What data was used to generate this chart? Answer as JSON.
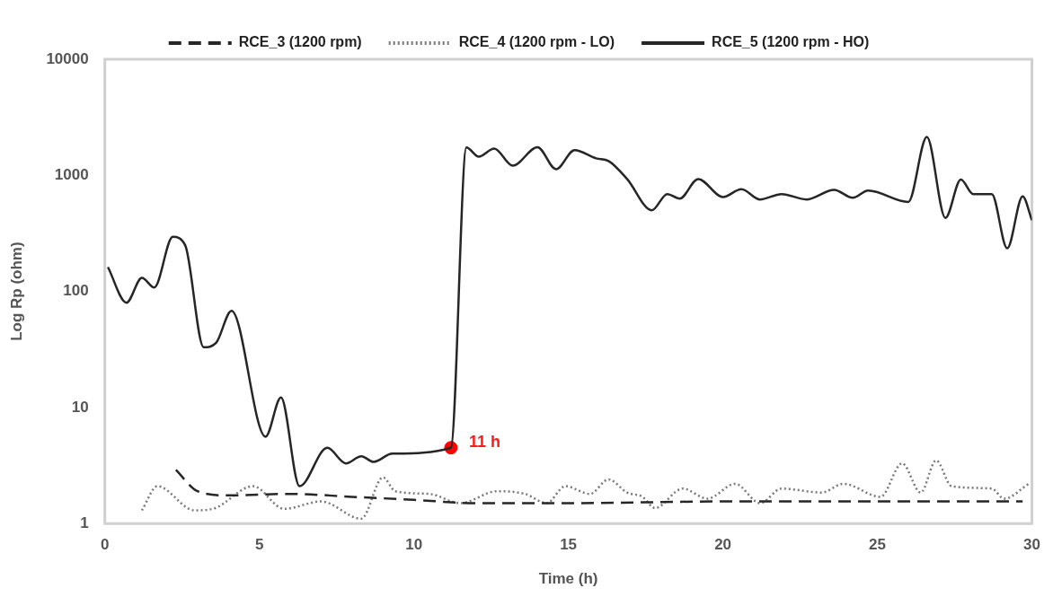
{
  "chart_data": {
    "type": "line",
    "xlabel": "Time (h)",
    "ylabel": "Log Rp (ohm)",
    "log": "y",
    "grid": false,
    "legend": "top",
    "marker": "none",
    "xlim": [
      0,
      30
    ],
    "xticks": [
      0,
      5,
      10,
      15,
      20,
      25,
      30
    ],
    "ylim": [
      1,
      10000
    ],
    "yticks": [
      1,
      10,
      100,
      1000,
      10000
    ],
    "annotations": [
      {
        "text": "11 h",
        "x": 11.2,
        "y": 4.5
      }
    ],
    "series": [
      {
        "name": "RCE_3 (1200 rpm)",
        "color": "#262626",
        "line_style": "dashed",
        "x": [
          2.3,
          3.0,
          4.0,
          6.0,
          8.0,
          10.0,
          12.0,
          15.0,
          20.0,
          25.0,
          29.7
        ],
        "values": [
          2.9,
          1.9,
          1.75,
          1.8,
          1.7,
          1.6,
          1.5,
          1.5,
          1.55,
          1.55,
          1.55
        ]
      },
      {
        "name": "RCE_4 (1200 rpm - LO)",
        "color": "#7a7a7a",
        "line_style": "dotted",
        "x": [
          1.2,
          1.7,
          2.9,
          3.5,
          4.8,
          5.8,
          7.0,
          8.3,
          9.0,
          9.4,
          10.5,
          11.5,
          12.7,
          13.6,
          14.3,
          14.9,
          15.7,
          16.3,
          16.9,
          17.4,
          17.8,
          18.7,
          19.5,
          20.4,
          21.2,
          21.9,
          23.2,
          23.9,
          25.1,
          25.8,
          26.4,
          26.9,
          27.4,
          28.7,
          29.1,
          29.9
        ],
        "values": [
          1.3,
          2.1,
          1.3,
          1.34,
          2.1,
          1.34,
          1.55,
          1.1,
          2.5,
          1.9,
          1.8,
          1.5,
          1.9,
          1.8,
          1.5,
          2.1,
          1.8,
          2.4,
          1.85,
          1.7,
          1.36,
          2.0,
          1.64,
          2.2,
          1.5,
          2.0,
          1.85,
          2.2,
          1.7,
          3.3,
          1.85,
          3.5,
          2.1,
          2.0,
          1.64,
          2.2
        ]
      },
      {
        "name": "RCE_5 (1200 rpm - HO)",
        "color": "#262626",
        "line_style": "solid",
        "x": [
          0.1,
          0.7,
          1.2,
          1.6,
          2.2,
          2.6,
          3.2,
          3.6,
          4.1,
          5.2,
          5.7,
          6.3,
          7.2,
          7.8,
          8.3,
          8.7,
          9.3,
          11.2,
          11.7,
          12.1,
          12.6,
          13.2,
          14.0,
          14.6,
          15.2,
          15.9,
          16.3,
          16.9,
          17.7,
          18.2,
          18.6,
          19.2,
          20.0,
          20.6,
          21.2,
          21.9,
          22.7,
          23.6,
          24.2,
          24.7,
          26.0,
          26.6,
          27.2,
          27.7,
          28.1,
          28.7,
          29.2,
          29.7,
          30.0
        ],
        "values": [
          162,
          80,
          131,
          108,
          295,
          250,
          33,
          36,
          68,
          5.6,
          12.2,
          2.1,
          4.5,
          3.3,
          3.8,
          3.4,
          4.0,
          4.5,
          1740,
          1450,
          1700,
          1210,
          1750,
          1130,
          1650,
          1400,
          1330,
          930,
          500,
          690,
          630,
          930,
          650,
          760,
          620,
          690,
          620,
          750,
          640,
          740,
          590,
          2140,
          430,
          920,
          690,
          690,
          235,
          660,
          410
        ]
      },
      {
        "type": "scatter",
        "color": "#ff0000",
        "marker": "circle",
        "x": [
          11.2
        ],
        "values": [
          4.5
        ]
      }
    ]
  }
}
